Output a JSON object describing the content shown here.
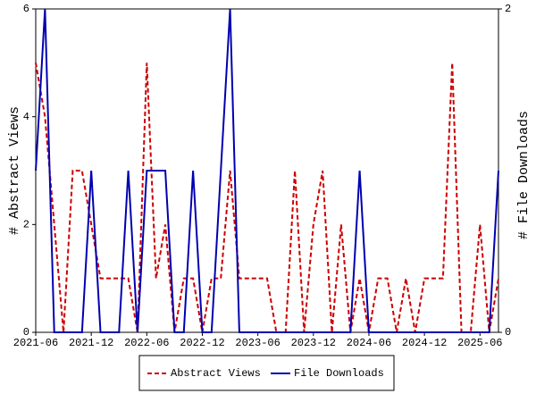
{
  "chart_data": {
    "type": "line",
    "categories": [
      "2021-06",
      null,
      null,
      null,
      null,
      null,
      "2021-12",
      null,
      null,
      null,
      null,
      null,
      "2022-06",
      null,
      null,
      null,
      null,
      null,
      "2022-12",
      null,
      null,
      null,
      null,
      null,
      "2023-06",
      null,
      null,
      null,
      null,
      null,
      "2023-12",
      null,
      null,
      null,
      null,
      null,
      "2024-06",
      null,
      null,
      null,
      null,
      null,
      "2024-12",
      null,
      null,
      null,
      null,
      null,
      "2025-06",
      null,
      null
    ],
    "series": [
      {
        "name": "Abstract Views",
        "color": "#cc0000",
        "dash": true,
        "values": [
          5,
          4,
          2,
          0,
          3,
          3,
          2,
          1,
          1,
          1,
          1,
          0,
          5,
          1,
          2,
          0,
          1,
          1,
          0,
          1,
          1,
          3,
          1,
          1,
          1,
          1,
          0,
          0,
          3,
          0,
          2,
          3,
          0,
          2,
          0,
          1,
          0,
          1,
          1,
          0,
          1,
          0,
          1,
          1,
          1,
          5,
          0,
          0,
          2,
          0,
          1
        ]
      },
      {
        "name": "File Downloads",
        "color": "#0000b0",
        "axis": "y2",
        "dash": false,
        "values": [
          1,
          2,
          0,
          0,
          0,
          0,
          1,
          0,
          0,
          0,
          1,
          0,
          1,
          1,
          1,
          0,
          0,
          1,
          0,
          0,
          1,
          2,
          0,
          0,
          0,
          0,
          0,
          0,
          0,
          0,
          0,
          0,
          0,
          0,
          0,
          1,
          0,
          0,
          0,
          0,
          0,
          0,
          0,
          0,
          0,
          0,
          0,
          0,
          0,
          0,
          1
        ]
      }
    ],
    "ylabel": "# Abstract Views",
    "y2label": "# File Downloads",
    "ylim": [
      0,
      6
    ],
    "yticks": [
      0,
      2,
      4,
      6
    ],
    "y2lim": [
      0,
      2
    ],
    "y2ticks": [
      0,
      2
    ],
    "legend": "bottom"
  }
}
